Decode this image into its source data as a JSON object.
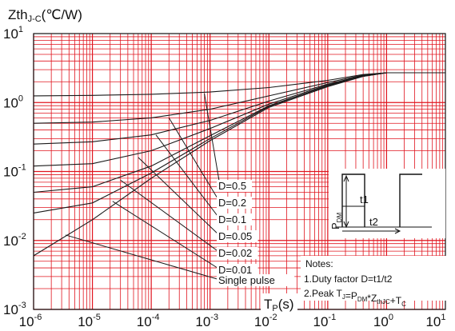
{
  "chart_data": {
    "type": "line",
    "title": "",
    "ylabel": {
      "main": "Zth",
      "sub": "J-C",
      "unit": "(℃/W)"
    },
    "xlabel": {
      "main": "T",
      "sub": "P",
      "unit": "(s)"
    },
    "xscale": "log",
    "yscale": "log",
    "xlim": [
      1e-06,
      10
    ],
    "ylim": [
      0.001,
      10
    ],
    "grid": true,
    "grid_color": "#e0141e",
    "line_color": "#1a1a1a",
    "x_ticks": [
      {
        "base": "10",
        "exp": "-6"
      },
      {
        "base": "10",
        "exp": "-5"
      },
      {
        "base": "10",
        "exp": "-4"
      },
      {
        "base": "10",
        "exp": "-3"
      },
      {
        "base": "10",
        "exp": "-2"
      },
      {
        "base": "10",
        "exp": "-1"
      },
      {
        "base": "10",
        "exp": "0"
      },
      {
        "base": "10",
        "exp": "1"
      }
    ],
    "y_ticks": [
      {
        "base": "10",
        "exp": "-3"
      },
      {
        "base": "10",
        "exp": "-2"
      },
      {
        "base": "10",
        "exp": "-1"
      },
      {
        "base": "10",
        "exp": "0"
      },
      {
        "base": "10",
        "exp": "1"
      }
    ],
    "series": [
      {
        "name": "D=0.5",
        "x": [
          1e-06,
          1e-05,
          0.0001,
          0.001,
          0.01,
          0.1,
          0.4,
          1,
          10
        ],
        "y": [
          1.25,
          1.27,
          1.32,
          1.42,
          1.65,
          2.1,
          2.55,
          2.7,
          2.7
        ]
      },
      {
        "name": "D=0.2",
        "x": [
          1e-06,
          1e-05,
          0.0001,
          0.001,
          0.01,
          0.1,
          0.4,
          1,
          10
        ],
        "y": [
          0.5,
          0.52,
          0.6,
          0.8,
          1.25,
          1.95,
          2.5,
          2.7,
          2.7
        ]
      },
      {
        "name": "D=0.1",
        "x": [
          1e-06,
          1e-05,
          0.0001,
          0.001,
          0.01,
          0.1,
          0.4,
          1,
          10
        ],
        "y": [
          0.25,
          0.27,
          0.34,
          0.55,
          1.05,
          1.85,
          2.45,
          2.7,
          2.7
        ]
      },
      {
        "name": "D=0.05",
        "x": [
          1e-06,
          1e-05,
          0.0001,
          0.001,
          0.01,
          0.1,
          0.4,
          1,
          10
        ],
        "y": [
          0.12,
          0.13,
          0.2,
          0.42,
          0.95,
          1.8,
          2.45,
          2.7,
          2.7
        ]
      },
      {
        "name": "D=0.02",
        "x": [
          1e-06,
          1e-05,
          0.0001,
          0.001,
          0.01,
          0.1,
          0.4,
          1,
          10
        ],
        "y": [
          0.05,
          0.06,
          0.12,
          0.33,
          0.9,
          1.75,
          2.4,
          2.7,
          2.7
        ]
      },
      {
        "name": "D=0.01",
        "x": [
          1e-06,
          1e-05,
          0.0001,
          0.001,
          0.01,
          0.1,
          0.4,
          1,
          10
        ],
        "y": [
          0.025,
          0.035,
          0.095,
          0.3,
          0.88,
          1.75,
          2.4,
          2.7,
          2.7
        ]
      },
      {
        "name": "Single pulse",
        "x": [
          1e-06,
          1e-05,
          0.0001,
          0.001,
          0.01,
          0.1,
          0.4,
          1,
          10
        ],
        "y": [
          0.006,
          0.02,
          0.08,
          0.28,
          0.85,
          1.7,
          2.4,
          2.7,
          2.7
        ]
      }
    ],
    "annotations": {
      "labels": [
        "D=0.5",
        "D=0.2",
        "D=0.1",
        "D=0.05",
        "D=0.02",
        "D=0.01",
        "Single pulse"
      ],
      "label_targets": [
        {
          "x": 0.0008,
          "y": 1.35
        },
        {
          "x": 0.0002,
          "y": 0.6
        },
        {
          "x": 0.00012,
          "y": 0.34
        },
        {
          "x": 6e-05,
          "y": 0.16
        },
        {
          "x": 3e-05,
          "y": 0.075
        },
        {
          "x": 2.2e-05,
          "y": 0.037
        },
        {
          "x": 3.5e-06,
          "y": 0.012
        }
      ],
      "notes_title": "Notes:",
      "notes": [
        {
          "text": "1.Duty factor D=t1/t2"
        },
        {
          "parts": [
            {
              "t": "2.Peak T"
            },
            {
              "t": "J",
              "sub": true
            },
            {
              "t": "=P"
            },
            {
              "t": "DM",
              "sub": true
            },
            {
              "t": "*Z"
            },
            {
              "t": "thJC",
              "sub": true
            },
            {
              "t": "+T"
            },
            {
              "t": "C",
              "sub": true
            }
          ]
        }
      ],
      "inset": {
        "pdm_main": "P",
        "pdm_sub": "DM",
        "t1": "t1",
        "t2": "t2"
      }
    }
  }
}
